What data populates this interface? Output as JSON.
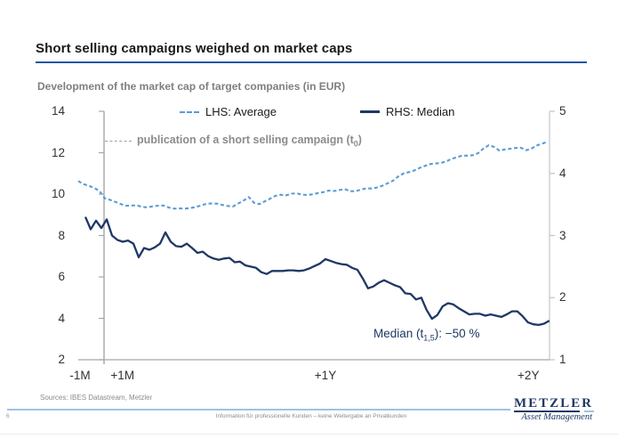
{
  "header": {
    "title": "Short selling campaigns weighed on market caps",
    "subtitle": "Development of the market cap of target companies (in EUR)"
  },
  "colors": {
    "title_underline": "#2456a4",
    "average_line": "#5b9bd5",
    "median_line": "#1f3864",
    "axis_gray": "#a6a6a6",
    "right_axis_gray": "#c4c4c4",
    "text_gray": "#8c8c8c",
    "footer_line": "#9dc3e6",
    "logo_blue": "#1f3864"
  },
  "legend": {
    "items": [
      {
        "label": "LHS: Average",
        "style": "dashed",
        "color": "#5b9bd5"
      },
      {
        "label": "RHS: Median",
        "style": "solid",
        "color": "#1f3864"
      }
    ]
  },
  "reference_legend": {
    "prefix": "publication of a short selling campaign (t",
    "sub": "0",
    "suffix": ")"
  },
  "annotation": {
    "prefix": "Median (t",
    "sub": "1,5",
    "suffix": "): −50 %"
  },
  "footer": {
    "sources": "Sources: IBES Datastream, Metzler",
    "page_number": "6",
    "disclaimer": "Information für professionelle Kunden – keine Weitergabe an Privatkunden"
  },
  "logo": {
    "name": "METZLER",
    "tagline": "Asset Management"
  },
  "chart_data": {
    "type": "line",
    "title": "Development of the market cap of target companies (in EUR)",
    "grid": false,
    "legend_position": "top",
    "x_axis": {
      "unit": "time relative to publication of short selling campaign (t0), months",
      "domain_months": [
        -1.4,
        24.15
      ],
      "labels": [
        {
          "text": "-1M",
          "month": -1.3
        },
        {
          "text": "+1M",
          "month": 1.0
        },
        {
          "text": "+1Y",
          "month": 12.0
        },
        {
          "text": "+2Y",
          "month": 23.0
        }
      ]
    },
    "y_axis_left": {
      "name": "LHS (Average, EUR bn)",
      "range": [
        2,
        14
      ],
      "ticks": [
        14,
        12,
        10,
        8,
        6,
        4,
        2
      ]
    },
    "y_axis_right": {
      "name": "RHS (Median, EUR bn)",
      "range": [
        1,
        5
      ],
      "ticks": [
        5,
        4,
        3,
        2,
        1
      ]
    },
    "reference_line": {
      "month": 0,
      "label": "publication of a short selling campaign (t0)"
    },
    "series": [
      {
        "name": "LHS: Average",
        "axis": "left",
        "style": "dashed",
        "color": "#5b9bd5",
        "x_start_month": -1.4,
        "x_step_month": 0.289,
        "values": [
          10.63,
          10.48,
          10.4,
          10.3,
          10.15,
          9.8,
          9.72,
          9.62,
          9.52,
          9.44,
          9.45,
          9.46,
          9.38,
          9.36,
          9.41,
          9.44,
          9.45,
          9.35,
          9.3,
          9.31,
          9.3,
          9.33,
          9.37,
          9.45,
          9.53,
          9.55,
          9.54,
          9.48,
          9.43,
          9.4,
          9.55,
          9.68,
          9.86,
          9.58,
          9.52,
          9.65,
          9.78,
          9.92,
          9.97,
          9.94,
          10.02,
          10.04,
          9.97,
          9.96,
          9.99,
          10.05,
          10.1,
          10.17,
          10.15,
          10.2,
          10.24,
          10.14,
          10.14,
          10.22,
          10.28,
          10.27,
          10.32,
          10.4,
          10.52,
          10.64,
          10.85,
          11.0,
          11.06,
          11.14,
          11.26,
          11.36,
          11.45,
          11.48,
          11.5,
          11.58,
          11.7,
          11.78,
          11.86,
          11.86,
          11.88,
          11.98,
          12.2,
          12.36,
          12.28,
          12.1,
          12.16,
          12.19,
          12.23,
          12.24,
          12.12,
          12.2,
          12.35,
          12.44,
          12.52
        ]
      },
      {
        "name": "RHS: Median",
        "axis": "right",
        "style": "solid",
        "color": "#1f3864",
        "x_start_month": -1.01,
        "x_step_month": 0.289,
        "values": [
          3.3,
          3.1,
          3.24,
          3.12,
          3.26,
          3.0,
          2.93,
          2.9,
          2.92,
          2.87,
          2.65,
          2.8,
          2.77,
          2.81,
          2.87,
          3.05,
          2.9,
          2.83,
          2.82,
          2.87,
          2.8,
          2.72,
          2.74,
          2.67,
          2.63,
          2.61,
          2.63,
          2.64,
          2.57,
          2.58,
          2.52,
          2.5,
          2.48,
          2.41,
          2.38,
          2.43,
          2.43,
          2.43,
          2.44,
          2.44,
          2.43,
          2.44,
          2.47,
          2.51,
          2.55,
          2.62,
          2.59,
          2.56,
          2.54,
          2.53,
          2.48,
          2.45,
          2.31,
          2.15,
          2.18,
          2.24,
          2.28,
          2.24,
          2.2,
          2.17,
          2.07,
          2.06,
          1.97,
          2.0,
          1.8,
          1.66,
          1.72,
          1.86,
          1.91,
          1.89,
          1.83,
          1.78,
          1.73,
          1.74,
          1.74,
          1.71,
          1.73,
          1.71,
          1.69,
          1.73,
          1.78,
          1.78,
          1.7,
          1.6,
          1.57,
          1.56,
          1.58,
          1.63
        ]
      }
    ],
    "annotations": [
      {
        "text": "Median (t1,5): −50 %",
        "color": "#1f3864"
      }
    ]
  }
}
